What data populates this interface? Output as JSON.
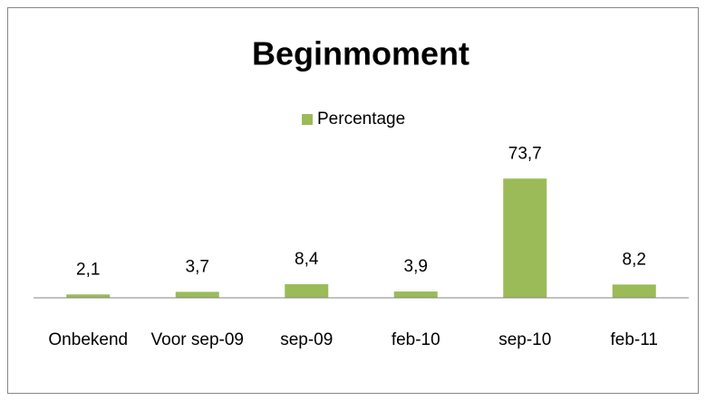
{
  "chart_data": {
    "type": "bar",
    "title": "Beginmoment",
    "categories": [
      "Onbekend",
      "Voor sep-09",
      "sep-09",
      "feb-10",
      "sep-10",
      "feb-11"
    ],
    "series": [
      {
        "name": "Percentage",
        "color": "#9bbb59",
        "values": [
          2.1,
          3.7,
          8.4,
          3.9,
          73.7,
          8.2
        ],
        "value_labels": [
          "2,1",
          "3,7",
          "8,4",
          "3,9",
          "73,7",
          "8,2"
        ]
      }
    ],
    "ylim": [
      0,
      80
    ],
    "legend": "top"
  }
}
